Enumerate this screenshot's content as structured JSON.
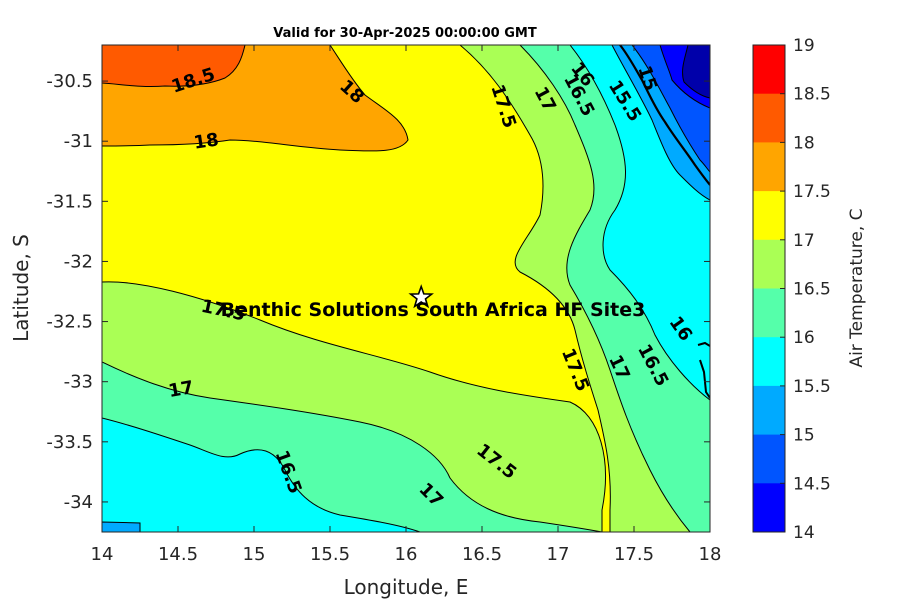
{
  "title": "Valid for 30-Apr-2025 00:00:00 GMT",
  "xlabel": "Longitude, E",
  "ylabel": "Latitude, S",
  "colorbar": {
    "label": "Air Temperature, C",
    "ticks": [
      "19",
      "18.5",
      "18",
      "17.5",
      "17",
      "16.5",
      "16",
      "15.5",
      "15",
      "14.5",
      "14"
    ],
    "colors": [
      "#ff0000",
      "#ff5a00",
      "#ffa500",
      "#ffff00",
      "#aaff55",
      "#55ffaa",
      "#00ffff",
      "#00aaff",
      "#0055ff",
      "#0000ff",
      "#0000aa"
    ]
  },
  "x_ticks": [
    "14",
    "14.5",
    "15",
    "15.5",
    "16",
    "16.5",
    "17",
    "17.5",
    "18"
  ],
  "y_ticks": [
    "-30.5",
    "-31",
    "-31.5",
    "-32",
    "-32.5",
    "-33",
    "-33.5",
    "-34"
  ],
  "site": {
    "name": "Benthic Solutions South Africa HF Site3",
    "lon": 16.1,
    "lat": -32.3
  },
  "chart_data": {
    "type": "heatmap",
    "title": "Valid for 30-Apr-2025 00:00:00 GMT",
    "xlabel": "Longitude, E",
    "ylabel": "Latitude, S",
    "xlim": [
      14,
      18
    ],
    "ylim": [
      -34.25,
      -30.2
    ],
    "clim": [
      14,
      19
    ],
    "contour_levels": [
      14.5,
      15,
      15.5,
      16,
      16.5,
      17,
      17.5,
      18,
      18.5
    ],
    "contour_labels": [
      "18.5",
      "18",
      "18",
      "17.5",
      "17",
      "16.5",
      "16",
      "15.5",
      "15",
      "17.5",
      "17",
      "16.5",
      "16",
      "17.5",
      "17",
      "16.5",
      "17.5",
      "17",
      "17.5"
    ]
  }
}
